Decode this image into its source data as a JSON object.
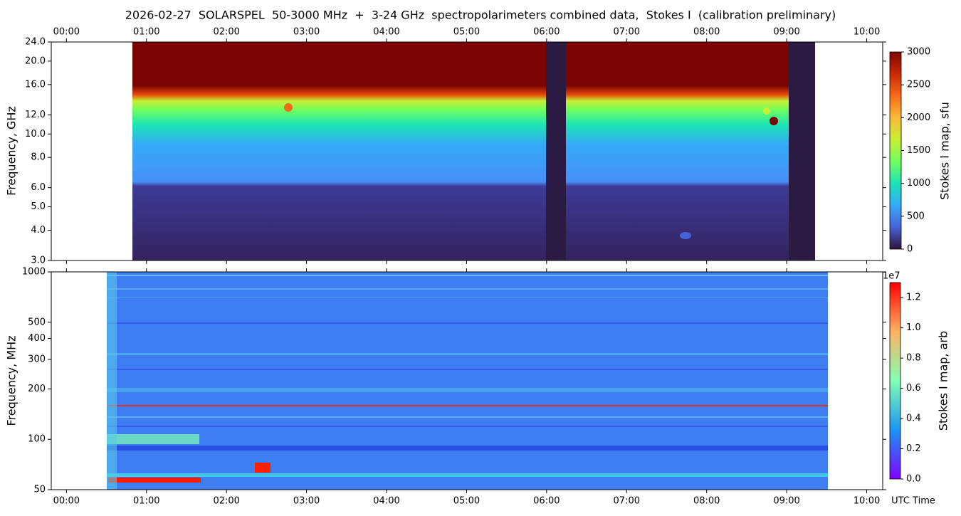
{
  "chart_data": [
    {
      "type": "heatmap",
      "title": "2026-02-27  SOLARSPEL  50-3000 MHz  +  3-24 GHz  spectropolarimeters combined data,  Stokes I  (calibration preliminary)",
      "y_label": "Frequency, GHz",
      "y_scale": "log",
      "x_tick_side": "top",
      "xlim": [
        -0.19,
        10.2
      ],
      "xticks": [
        {
          "value": 0,
          "label": "00:00"
        },
        {
          "value": 1,
          "label": "01:00"
        },
        {
          "value": 2,
          "label": "02:00"
        },
        {
          "value": 3,
          "label": "03:00"
        },
        {
          "value": 4,
          "label": "04:00"
        },
        {
          "value": 5,
          "label": "05:00"
        },
        {
          "value": 6,
          "label": "06:00"
        },
        {
          "value": 7,
          "label": "07:00"
        },
        {
          "value": 8,
          "label": "08:00"
        },
        {
          "value": 9,
          "label": "09:00"
        },
        {
          "value": 10,
          "label": "10:00"
        }
      ],
      "ylim": [
        3,
        24
      ],
      "yticks": [
        {
          "value": 3,
          "label": "3.0"
        },
        {
          "value": 4,
          "label": "4.0"
        },
        {
          "value": 5,
          "label": "5.0"
        },
        {
          "value": 6,
          "label": "6.0"
        },
        {
          "value": 8,
          "label": "8.0"
        },
        {
          "value": 10,
          "label": "10.0"
        },
        {
          "value": 12,
          "label": "12.0"
        },
        {
          "value": 16,
          "label": "16.0"
        },
        {
          "value": 20,
          "label": "20.0"
        },
        {
          "value": 24,
          "label": "24.0"
        }
      ],
      "colorbar": {
        "label": "Stokes I map, sfu",
        "clim": [
          0,
          3000
        ],
        "ticks": [
          0,
          500,
          1000,
          1500,
          2000,
          2500,
          3000
        ],
        "colormap": "turbo"
      }
    },
    {
      "type": "heatmap",
      "y_label": "Frequency, MHz",
      "x_label": "UTC Time",
      "y_scale": "log",
      "x_tick_side": "bottom",
      "xlim": [
        -0.19,
        10.2
      ],
      "xticks": [
        {
          "value": 0,
          "label": "00:00"
        },
        {
          "value": 1,
          "label": "01:00"
        },
        {
          "value": 2,
          "label": "02:00"
        },
        {
          "value": 3,
          "label": "03:00"
        },
        {
          "value": 4,
          "label": "04:00"
        },
        {
          "value": 5,
          "label": "05:00"
        },
        {
          "value": 6,
          "label": "06:00"
        },
        {
          "value": 7,
          "label": "07:00"
        },
        {
          "value": 8,
          "label": "08:00"
        },
        {
          "value": 9,
          "label": "09:00"
        },
        {
          "value": 10,
          "label": "10:00"
        }
      ],
      "ylim": [
        50,
        1000
      ],
      "yticks": [
        50,
        100,
        200,
        300,
        400,
        500,
        1000
      ],
      "colorbar": {
        "label": "Stokes I map, arb",
        "clim": [
          0,
          1.3
        ],
        "ticks": [
          {
            "value": 0,
            "label": "0.0"
          },
          {
            "value": 0.2,
            "label": "0.2"
          },
          {
            "value": 0.4,
            "label": "0.4"
          },
          {
            "value": 0.6,
            "label": "0.6"
          },
          {
            "value": 0.8,
            "label": "0.8"
          },
          {
            "value": 1.0,
            "label": "1.0"
          },
          {
            "value": 1.2,
            "label": "1.2"
          }
        ],
        "offset_text": "1e7",
        "colormap": "rainbow"
      }
    }
  ]
}
